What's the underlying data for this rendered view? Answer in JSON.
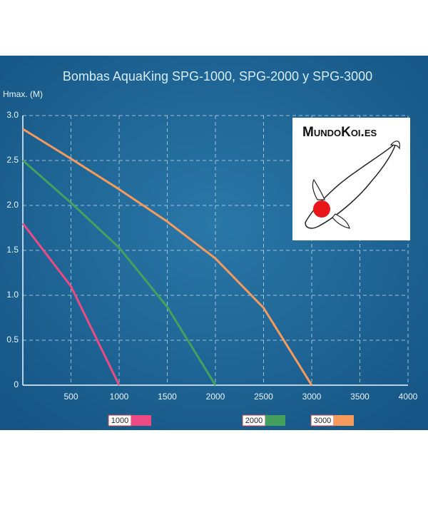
{
  "chart_data": {
    "type": "line",
    "title": "Bombas AquaKing SPG-1000, SPG-2000 y SPG-3000",
    "y_label": "Hmax. (M)",
    "x": [
      0,
      500,
      1000,
      1500,
      2000,
      2500,
      3000
    ],
    "series": [
      {
        "name": "1000",
        "color": "#ec4a82",
        "values": [
          1.8,
          1.1,
          0,
          null,
          null,
          null,
          null
        ]
      },
      {
        "name": "2000",
        "color": "#45a060",
        "values": [
          2.5,
          2.03,
          1.53,
          0.87,
          0,
          null,
          null
        ]
      },
      {
        "name": "3000",
        "color": "#f79a5e",
        "values": [
          2.85,
          2.52,
          2.18,
          1.82,
          1.41,
          0.86,
          0
        ]
      }
    ],
    "xlim": [
      0,
      4000
    ],
    "xticks": [
      500,
      1000,
      1500,
      2000,
      2500,
      3000,
      3500,
      4000
    ],
    "ylim": [
      0,
      3
    ],
    "yticks": [
      0,
      {
        "value": 0.5,
        "label": "0.5"
      },
      {
        "value": 1,
        "label": "1.0"
      },
      {
        "value": 1.5,
        "label": "1.5"
      },
      {
        "value": 2,
        "label": "2.0"
      },
      {
        "value": 2.5,
        "label": "2.5"
      },
      {
        "value": 3,
        "label": "3.0"
      }
    ],
    "grid": true
  },
  "logo": {
    "text": "MundoKoi.es"
  }
}
